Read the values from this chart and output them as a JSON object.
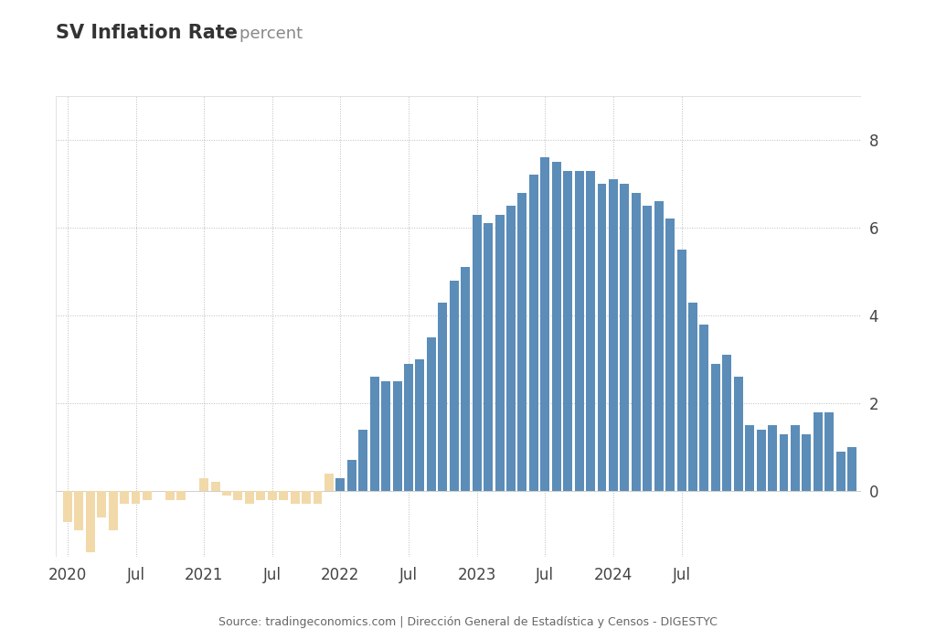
{
  "title": "SV Inflation Rate",
  "title_suffix": " - percent",
  "source": "Source: tradingeconomics.com | Dirección General de Estadística y Censos - DIGESTYC",
  "background_color": "#ffffff",
  "plot_bg_color": "#ffffff",
  "bar_color_blue": "#5b8db8",
  "bar_color_tan": "#f2d9a9",
  "ylim": [
    -1.5,
    9.0
  ],
  "yticks": [
    0,
    2,
    4,
    6,
    8
  ],
  "values": [
    -0.7,
    -0.9,
    -1.4,
    -0.6,
    -0.9,
    -0.3,
    -0.3,
    -0.2,
    0.0,
    -0.2,
    -0.2,
    0.0,
    0.3,
    0.2,
    -0.1,
    -0.2,
    -0.3,
    -0.2,
    -0.2,
    -0.2,
    -0.3,
    -0.3,
    -0.3,
    0.4,
    0.3,
    0.7,
    1.4,
    2.6,
    2.5,
    2.5,
    2.9,
    3.0,
    3.5,
    4.3,
    4.8,
    5.1,
    6.3,
    6.1,
    6.3,
    6.5,
    6.8,
    7.2,
    7.6,
    7.5,
    7.3,
    7.3,
    7.3,
    7.0,
    7.1,
    7.0,
    6.8,
    6.5,
    6.6,
    6.2,
    5.5,
    4.3,
    3.8,
    2.9,
    3.1,
    2.6,
    1.5,
    1.4,
    1.5,
    1.3,
    1.5,
    1.3,
    1.8,
    1.8,
    0.9,
    1.0
  ],
  "tan_count": 24,
  "xtick_labels": [
    "2020",
    "Jul",
    "2021",
    "Jul",
    "2022",
    "Jul",
    "2023",
    "Jul",
    "2024",
    "Jul"
  ],
  "xtick_positions": [
    0,
    6,
    12,
    18,
    24,
    30,
    36,
    42,
    48,
    54
  ]
}
